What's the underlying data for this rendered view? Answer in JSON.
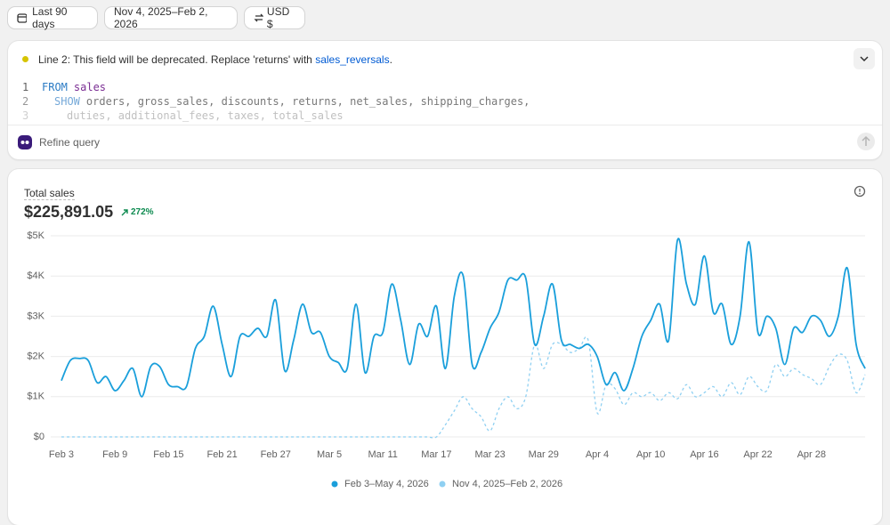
{
  "toolbar": {
    "range": "Last 90 days",
    "compare": "Nov 4, 2025–Feb 2, 2026",
    "currency": "USD $"
  },
  "query": {
    "warning": "Line 2: This field will be deprecated. Replace 'returns' with",
    "link": "sales_reversals",
    "warning_end": ".",
    "lines": [
      {
        "number": "1",
        "keyword": "FROM",
        "text": "sales"
      },
      {
        "number": "2",
        "keyword": "SHOW",
        "text": "orders, gross_sales, discounts, returns, net_sales, shipping_charges,"
      },
      {
        "number": "3",
        "text": "duties, additional_fees, taxes, total_sales"
      }
    ],
    "refine": "Refine query"
  },
  "chart_data": {
    "type": "line",
    "title": "Total sales",
    "total": "$225,891.05",
    "change": "272%",
    "categories": [
      "Feb 3",
      null,
      null,
      null,
      null,
      null,
      "Feb 9",
      null,
      null,
      null,
      null,
      null,
      "Feb 15",
      null,
      null,
      null,
      null,
      null,
      "Feb 21",
      null,
      null,
      null,
      null,
      null,
      "Feb 27",
      null,
      null,
      null,
      null,
      null,
      "Mar 5",
      null,
      null,
      null,
      null,
      null,
      "Mar 11",
      null,
      null,
      null,
      null,
      null,
      "Mar 17",
      null,
      null,
      null,
      null,
      null,
      "Mar 23",
      null,
      null,
      null,
      null,
      null,
      "Mar 29",
      null,
      null,
      null,
      null,
      null,
      "Apr 4",
      null,
      null,
      null,
      null,
      null,
      "Apr 10",
      null,
      null,
      null,
      null,
      null,
      "Apr 16",
      null,
      null,
      null,
      null,
      null,
      "Apr 22",
      null,
      null,
      null,
      null,
      null,
      "Apr 28",
      null,
      null,
      null,
      null,
      null,
      null
    ],
    "series": [
      {
        "name": "Feb 3–May 4, 2026",
        "color": "#1a9fdb",
        "dashed": false,
        "values": [
          1400,
          1900,
          1950,
          1900,
          1350,
          1500,
          1150,
          1400,
          1700,
          1000,
          1750,
          1750,
          1300,
          1250,
          1250,
          2200,
          2500,
          3250,
          2300,
          1500,
          2500,
          2500,
          2700,
          2500,
          3400,
          1650,
          2400,
          3300,
          2600,
          2600,
          2000,
          1850,
          1700,
          3300,
          1600,
          2500,
          2600,
          3800,
          2900,
          1800,
          2800,
          2500,
          3250,
          1700,
          3500,
          4000,
          1800,
          2100,
          2700,
          3100,
          3900,
          3900,
          3950,
          2300,
          3000,
          3800,
          2400,
          2300,
          2200,
          2300,
          2000,
          1300,
          1600,
          1150,
          1700,
          2500,
          2900,
          3300,
          2400,
          4900,
          3800,
          3300,
          4500,
          3100,
          3300,
          2300,
          3000,
          4850,
          2600,
          3000,
          2700,
          1800,
          2700,
          2600,
          3000,
          2900,
          2500,
          3000,
          4200,
          2300,
          1700
        ]
      },
      {
        "name": "Nov 4, 2025–Feb 2, 2026",
        "color": "#8fd0f2",
        "dashed": true,
        "values": [
          0,
          0,
          0,
          0,
          0,
          0,
          0,
          0,
          0,
          0,
          0,
          0,
          0,
          0,
          0,
          0,
          0,
          0,
          0,
          0,
          0,
          0,
          0,
          0,
          0,
          0,
          0,
          0,
          0,
          0,
          0,
          0,
          0,
          0,
          0,
          0,
          0,
          0,
          0,
          0,
          0,
          0,
          0,
          300,
          650,
          1000,
          700,
          500,
          150,
          700,
          1000,
          700,
          1000,
          2300,
          1700,
          2300,
          2300,
          2100,
          2200,
          2400,
          600,
          1300,
          1200,
          800,
          1100,
          1000,
          1100,
          900,
          1100,
          950,
          1300,
          1000,
          1100,
          1250,
          1000,
          1350,
          1050,
          1500,
          1250,
          1150,
          1800,
          1500,
          1700,
          1550,
          1450,
          1300,
          1750,
          2050,
          1900,
          1100,
          1550
        ]
      }
    ],
    "ylim": [
      0,
      5000
    ],
    "yticks": [
      {
        "value": 0,
        "label": "$0"
      },
      {
        "value": 1000,
        "label": "$1K"
      },
      {
        "value": 2000,
        "label": "$2K"
      },
      {
        "value": 3000,
        "label": "$3K"
      },
      {
        "value": 4000,
        "label": "$4K"
      },
      {
        "value": 5000,
        "label": "$5K"
      }
    ],
    "grid": true,
    "legend": "bottom"
  }
}
